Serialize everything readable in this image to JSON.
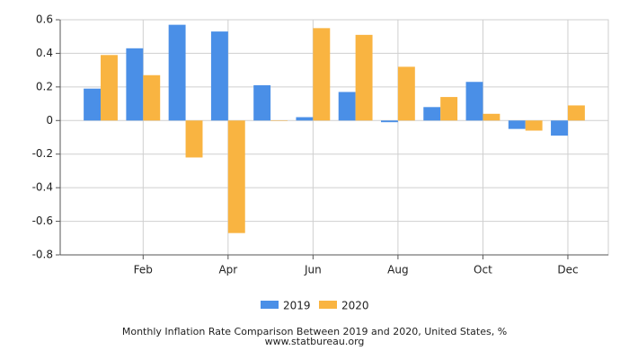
{
  "chart_data": {
    "type": "bar",
    "title": "Monthly Inflation Rate Comparison Between 2019 and 2020, United States, %",
    "subtitle": "www.statbureau.org",
    "categories": [
      null,
      "Feb",
      null,
      "Apr",
      null,
      "Jun",
      null,
      "Aug",
      null,
      "Oct",
      null,
      "Dec"
    ],
    "series": [
      {
        "name": "2019",
        "color": "#4a8fe7",
        "values": [
          0.19,
          0.43,
          0.57,
          0.53,
          0.21,
          0.02,
          0.17,
          -0.01,
          0.08,
          0.23,
          -0.05,
          -0.09
        ]
      },
      {
        "name": "2020",
        "color": "#f9b441",
        "values": [
          0.39,
          0.27,
          -0.22,
          -0.67,
          0.0,
          0.55,
          0.51,
          0.32,
          0.14,
          0.04,
          -0.06,
          0.09
        ]
      }
    ],
    "ylim": [
      -0.8,
      0.6
    ],
    "yticks": [
      -0.8,
      -0.6,
      -0.4,
      -0.2,
      0,
      0.2,
      0.4,
      0.6
    ],
    "grid": true,
    "legend": "bottom"
  }
}
